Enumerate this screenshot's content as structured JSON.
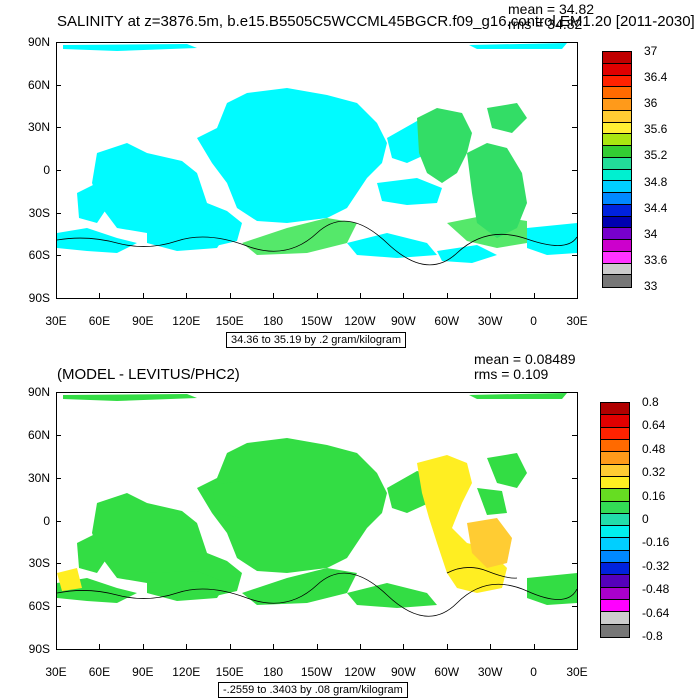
{
  "top": {
    "title": "SALINITY at z=3876.5m, b.e15.B5505C5WCCML45BGCR.f09_g16.control.EM1.20 [2011-2030]",
    "mean": "mean = 34.82",
    "rms": "rms = 34.82",
    "info": "34.36 to 35.19 by .2 gram/kilogram",
    "colorbar": {
      "labels": [
        "37",
        "36.4",
        "36",
        "35.6",
        "35.2",
        "34.8",
        "34.4",
        "34",
        "33.6",
        "33"
      ],
      "colors": [
        "#c00000",
        "#e00000",
        "#ff2200",
        "#ff6a00",
        "#ff9a1a",
        "#ffcc33",
        "#ffee33",
        "#aae610",
        "#33cc33",
        "#22dd99",
        "#00f0d0",
        "#00cfff",
        "#0088ff",
        "#0022dd",
        "#0000b0",
        "#7700cc",
        "#cc00cc",
        "#ff33ff",
        "#cccccc",
        "#777777"
      ]
    },
    "map_fill": "#00fbff",
    "map_fill_2": "#55e86a",
    "map_fill_3": "#33dd66"
  },
  "bottom": {
    "title": "(MODEL - LEVITUS/PHC2)",
    "mean": "mean = 0.08489",
    "rms": "rms = 0.109",
    "info": "-.2559 to .3403 by .08 gram/kilogram",
    "colorbar": {
      "labels": [
        "0.8",
        "0.64",
        "0.48",
        "0.32",
        "0.16",
        "0",
        "-0.16",
        "-0.32",
        "-0.48",
        "-0.64",
        "-0.8"
      ],
      "colors": [
        "#b00000",
        "#e00000",
        "#ff2200",
        "#ff6a00",
        "#ff9a1a",
        "#ffcc33",
        "#ffee22",
        "#66dd22",
        "#33dd55",
        "#22ddaa",
        "#00f0ee",
        "#00cfff",
        "#0088ff",
        "#0022dd",
        "#5500bb",
        "#aa00cc",
        "#ff00ff",
        "#cccccc",
        "#777777"
      ]
    },
    "map_fill": "#33dd44",
    "map_fill_2": "#ffee22",
    "map_fill_3": "#ffcc33"
  },
  "axes": {
    "y_labels": [
      "90N",
      "60N",
      "30N",
      "0",
      "30S",
      "60S",
      "90S"
    ],
    "x_labels": [
      "30E",
      "60E",
      "90E",
      "120E",
      "150E",
      "180",
      "150W",
      "120W",
      "90W",
      "60W",
      "30W",
      "0",
      "30E"
    ]
  }
}
